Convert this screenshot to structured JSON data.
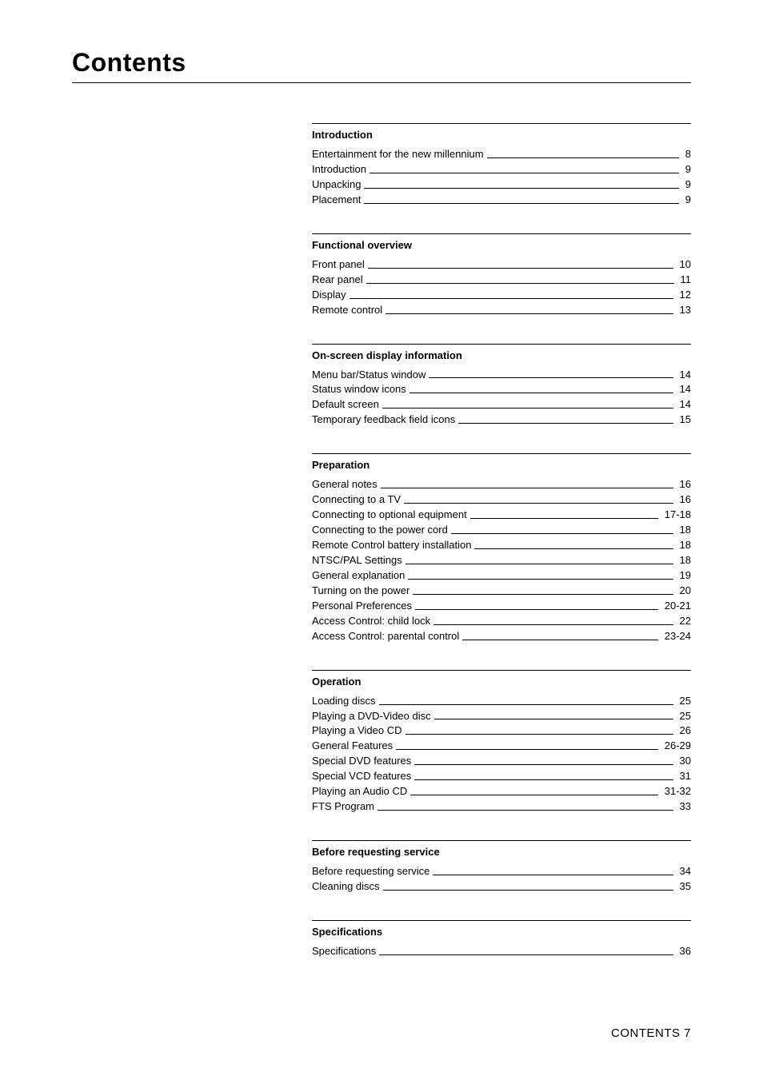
{
  "title": "Contents",
  "footer": "CONTENTS 7",
  "sections": [
    {
      "heading": "Introduction",
      "items": [
        {
          "label": "Entertainment for the new millennium",
          "page": "8"
        },
        {
          "label": "Introduction",
          "page": "9"
        },
        {
          "label": "Unpacking",
          "page": "9"
        },
        {
          "label": "Placement",
          "page": "9"
        }
      ]
    },
    {
      "heading": "Functional overview",
      "items": [
        {
          "label": "Front panel",
          "page": "10"
        },
        {
          "label": "Rear panel",
          "page": "11"
        },
        {
          "label": "Display",
          "page": "12"
        },
        {
          "label": "Remote control",
          "page": "13"
        }
      ]
    },
    {
      "heading": "On-screen display information",
      "items": [
        {
          "label": "Menu bar/Status window",
          "page": "14"
        },
        {
          "label": "Status window icons",
          "page": "14"
        },
        {
          "label": "Default screen",
          "page": "14"
        },
        {
          "label": "Temporary feedback field icons",
          "page": "15"
        }
      ]
    },
    {
      "heading": "Preparation",
      "items": [
        {
          "label": "General notes",
          "page": "16"
        },
        {
          "label": "Connecting to a TV",
          "page": "16"
        },
        {
          "label": "Connecting to optional equipment",
          "page": "17-18"
        },
        {
          "label": "Connecting to the power cord",
          "page": "18"
        },
        {
          "label": "Remote Control battery installation",
          "page": "18"
        },
        {
          "label": "NTSC/PAL Settings",
          "page": "18"
        },
        {
          "label": "General explanation",
          "page": "19"
        },
        {
          "label": "Turning on the power",
          "page": "20"
        },
        {
          "label": "Personal Preferences",
          "page": "20-21"
        },
        {
          "label": "Access Control: child lock",
          "page": "22"
        },
        {
          "label": "Access Control: parental control",
          "page": "23-24"
        }
      ]
    },
    {
      "heading": "Operation",
      "items": [
        {
          "label": "Loading discs",
          "page": "25"
        },
        {
          "label": "Playing a DVD-Video disc",
          "page": "25"
        },
        {
          "label": "Playing a Video CD",
          "page": "26"
        },
        {
          "label": "General Features",
          "page": "26-29"
        },
        {
          "label": "Special DVD features",
          "page": "30"
        },
        {
          "label": "Special VCD features",
          "page": "31"
        },
        {
          "label": "Playing an Audio CD",
          "page": "31-32"
        },
        {
          "label": "FTS Program",
          "page": "33"
        }
      ]
    },
    {
      "heading": "Before requesting service",
      "items": [
        {
          "label": "Before requesting service",
          "page": "34"
        },
        {
          "label": "Cleaning discs",
          "page": "35"
        }
      ]
    },
    {
      "heading": "Specifications",
      "items": [
        {
          "label": "Specifications",
          "page": "36"
        }
      ]
    }
  ]
}
